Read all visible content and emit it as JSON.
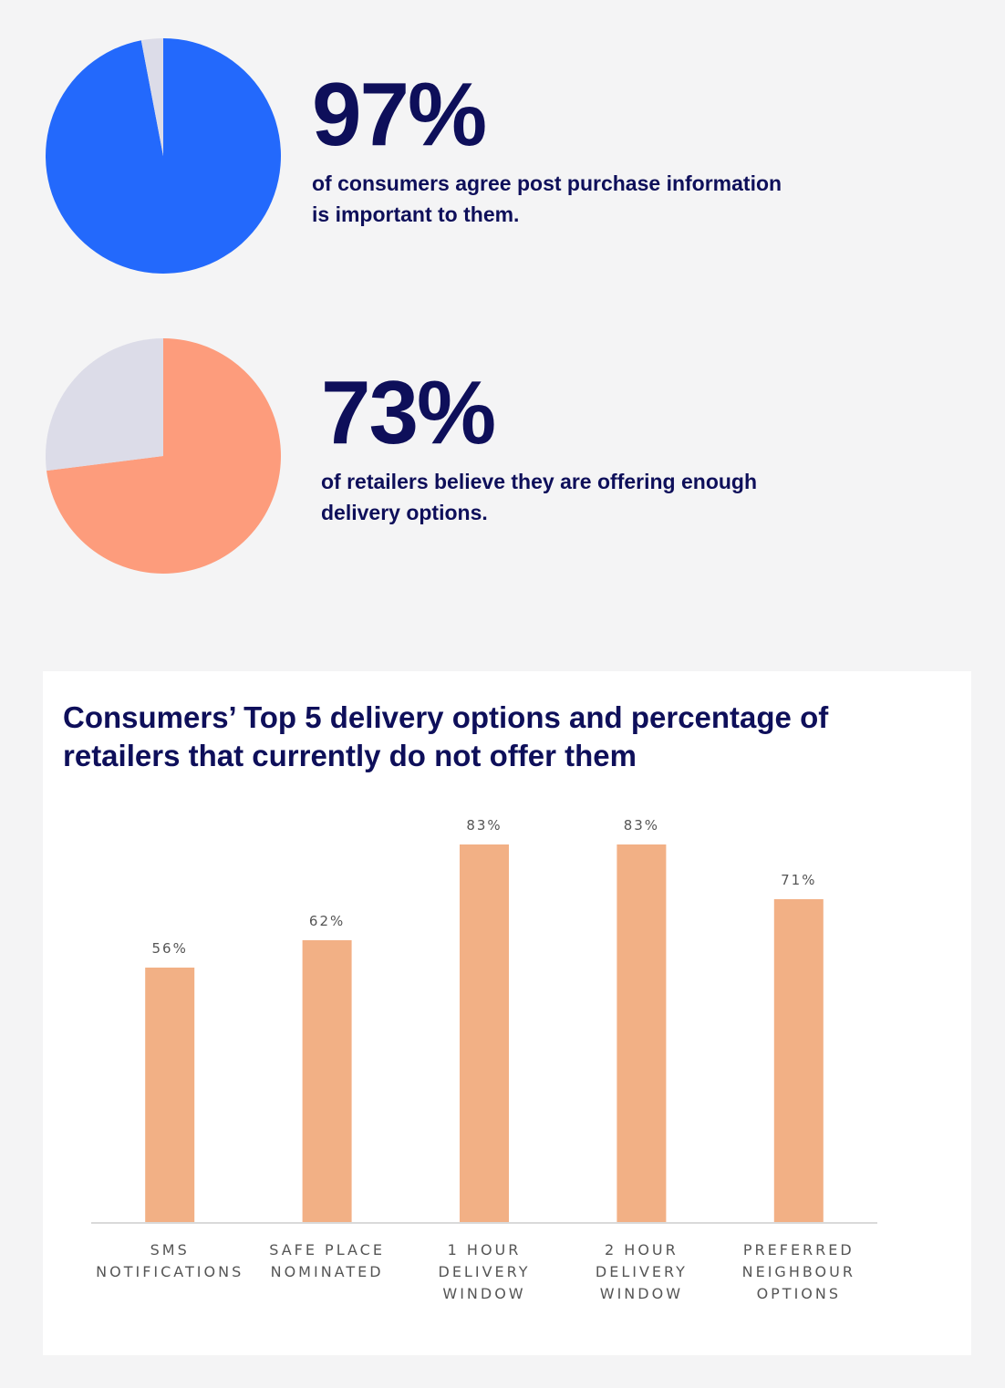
{
  "stats": [
    {
      "value": "97%",
      "percent": 97,
      "description_line1": "of consumers agree post purchase information",
      "description_line2": "is important to them.",
      "fill_color": "#2369fc",
      "remainder_color": "#dcdce8"
    },
    {
      "value": "73%",
      "percent": 73,
      "description_line1": "of retailers believe they are offering enough",
      "description_line2": "delivery options.",
      "fill_color": "#fd9c7c",
      "remainder_color": "#dcdce8"
    }
  ],
  "chart_data": {
    "type": "bar",
    "title": "Consumers’ Top 5 delivery options and percentage of retailers that currently do not offer them",
    "title_line1": "Consumers’ Top 5 delivery options and percentage of",
    "title_line2": "retailers that currently do not offer them",
    "categories": [
      [
        "SMS",
        "NOTIFICATIONS"
      ],
      [
        "SAFE PLACE",
        "NOMINATED"
      ],
      [
        "1 HOUR",
        "DELIVERY",
        "WINDOW"
      ],
      [
        "2 HOUR",
        "DELIVERY",
        "WINDOW"
      ],
      [
        "PREFERRED",
        "NEIGHBOUR",
        "OPTIONS"
      ]
    ],
    "values": [
      56,
      62,
      83,
      83,
      71
    ],
    "value_labels": [
      "56%",
      "62%",
      "83%",
      "83%",
      "71%"
    ],
    "ylim": [
      0,
      100
    ],
    "bar_color": "#f2b085",
    "axis_color": "#d9d9d9",
    "grid": false,
    "legend": false
  }
}
